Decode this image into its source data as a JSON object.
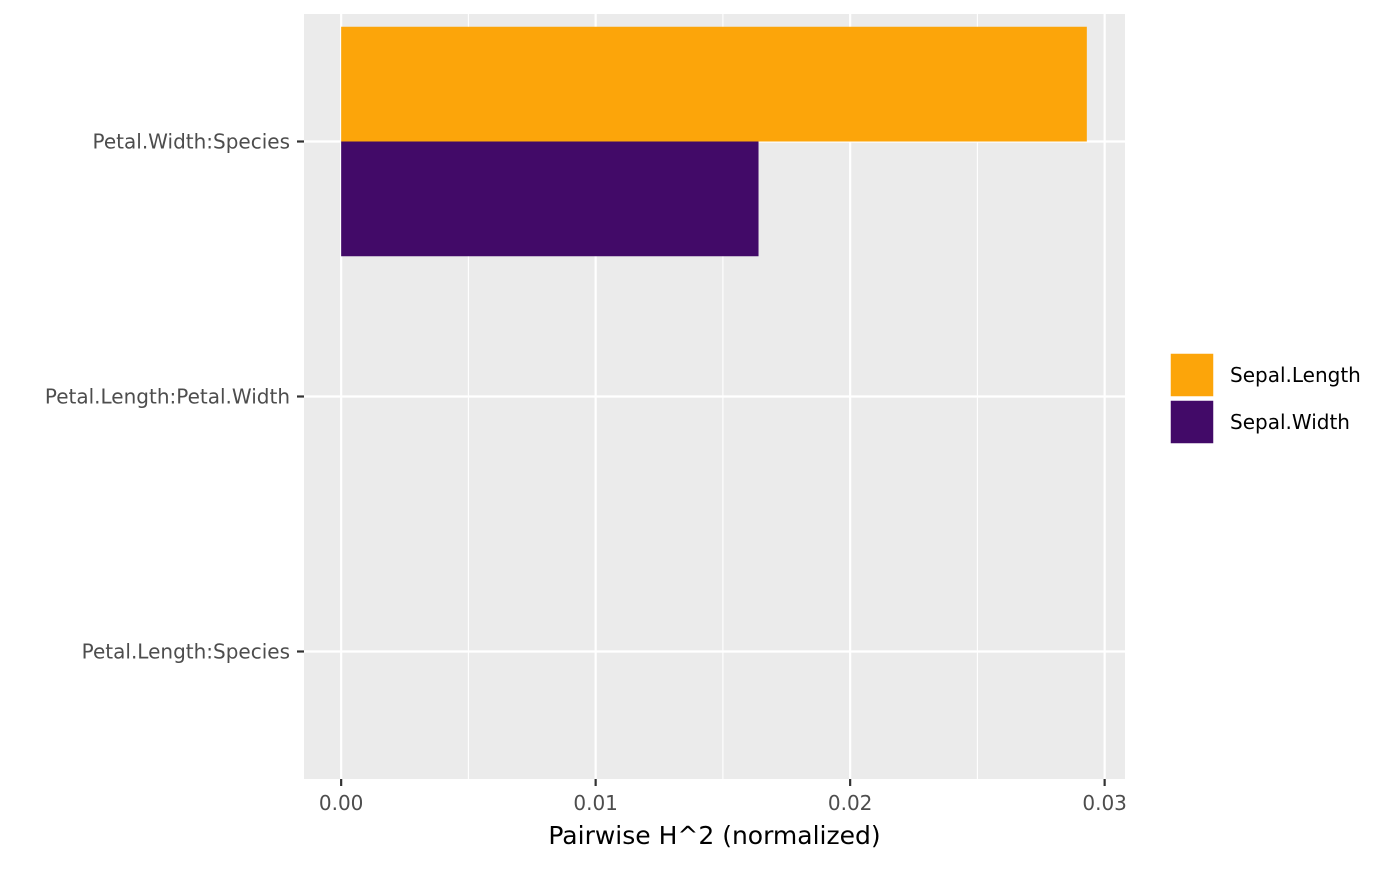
{
  "chart_data": {
    "type": "bar",
    "orientation": "horizontal",
    "title": "",
    "xlabel": "Pairwise H^2 (normalized)",
    "ylabel": "",
    "categories": [
      "Petal.Width:Species",
      "Petal.Length:Petal.Width",
      "Petal.Length:Species"
    ],
    "series": [
      {
        "name": "Sepal.Length",
        "color": "#FCA50A",
        "values": [
          0.0293,
          0,
          0
        ]
      },
      {
        "name": "Sepal.Width",
        "color": "#420A68",
        "values": [
          0.0164,
          0,
          0
        ]
      }
    ],
    "xlim": [
      -0.00146,
      0.0308
    ],
    "xticks": [
      0,
      0.01,
      0.02,
      0.03
    ],
    "xtick_labels": [
      "0.00",
      "0.01",
      "0.02",
      "0.03"
    ],
    "grid": true,
    "legend": {
      "position": "right",
      "entries": [
        "Sepal.Length",
        "Sepal.Width"
      ]
    },
    "panel_background": "#EBEBEB",
    "gridline_color": "#FFFFFF"
  }
}
